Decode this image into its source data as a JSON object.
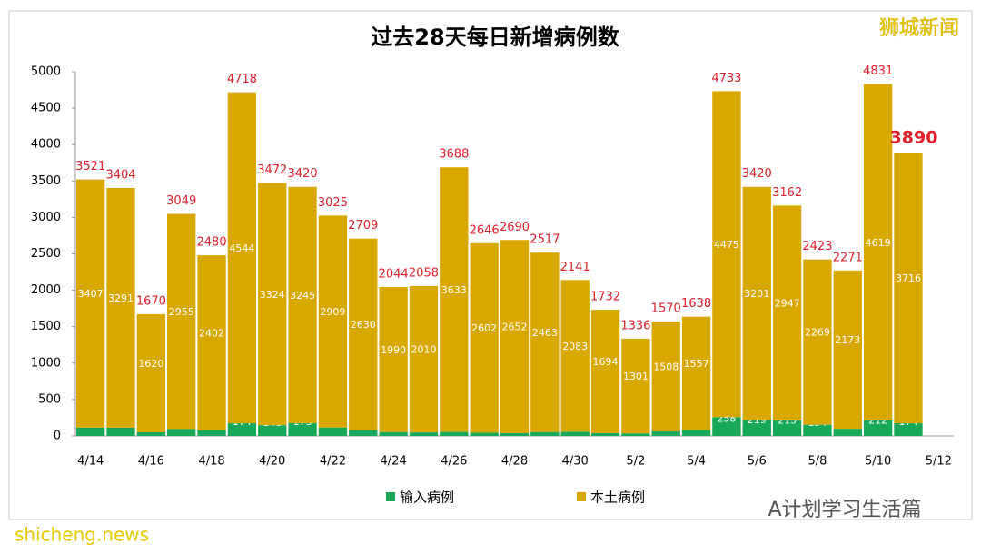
{
  "chart_data": {
    "type": "stacked_bar",
    "title": "过去28天每日新增病例数",
    "categories": [
      "4/14",
      null,
      "4/16",
      null,
      "4/18",
      null,
      "4/20",
      null,
      "4/22",
      null,
      "4/24",
      null,
      "4/26",
      null,
      "4/28",
      null,
      "4/30",
      null,
      "5/2",
      null,
      "5/4",
      null,
      "5/6",
      null,
      "5/8",
      null,
      "5/10",
      null,
      "5/12"
    ],
    "series": [
      {
        "name": "输入病例",
        "color": "#17a85a",
        "values": [
          114,
          113,
          50,
          94,
          78,
          174,
          148,
          175,
          116,
          79,
          54,
          48,
          55,
          44,
          38,
          54,
          58,
          38,
          35,
          62,
          81,
          258,
          219,
          215,
          154,
          98,
          212,
          174,
          null
        ]
      },
      {
        "name": "本土病例",
        "color": "#d9a800",
        "values": [
          3407,
          3291,
          1620,
          2955,
          2402,
          4544,
          3324,
          3245,
          2909,
          2630,
          1990,
          2010,
          3633,
          2602,
          2652,
          2463,
          2083,
          1694,
          1301,
          1508,
          1557,
          4475,
          3201,
          2947,
          2269,
          2173,
          4619,
          3716,
          null
        ]
      }
    ],
    "totals": [
      3521,
      3404,
      1670,
      3049,
      2480,
      4718,
      3472,
      3420,
      3025,
      2709,
      2044,
      2058,
      3688,
      2646,
      2690,
      2517,
      2141,
      1732,
      1336,
      1570,
      1638,
      4733,
      3420,
      3162,
      2423,
      2271,
      4831,
      3890,
      null
    ],
    "ylim": [
      0,
      5000
    ],
    "yticks": [
      0,
      500,
      1000,
      1500,
      2000,
      2500,
      3000,
      3500,
      4000,
      4500,
      5000
    ],
    "legend": "bottom"
  },
  "watermarks": {
    "top_right": "狮城新闻",
    "bottom_right": "A计划学习生活篇",
    "bottom_left": "shicheng.news"
  }
}
